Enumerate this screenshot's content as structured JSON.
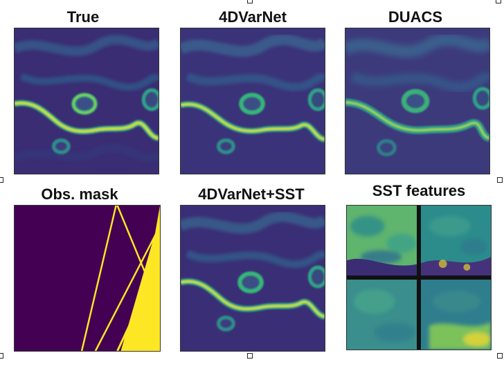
{
  "titles": {
    "true": "True",
    "fourdvarnet": "4DVarNet",
    "duacs": "DUACS",
    "obs_mask": "Obs. mask",
    "fourdvarnet_sst": "4DVarNet+SST",
    "sst_features": "SST features"
  },
  "colors": {
    "viridis_dark": "#3b0f70",
    "viridis_mid": "#2c5f8a",
    "viridis_teal": "#21908d",
    "viridis_green": "#5cc863",
    "viridis_yellow": "#fde725"
  }
}
